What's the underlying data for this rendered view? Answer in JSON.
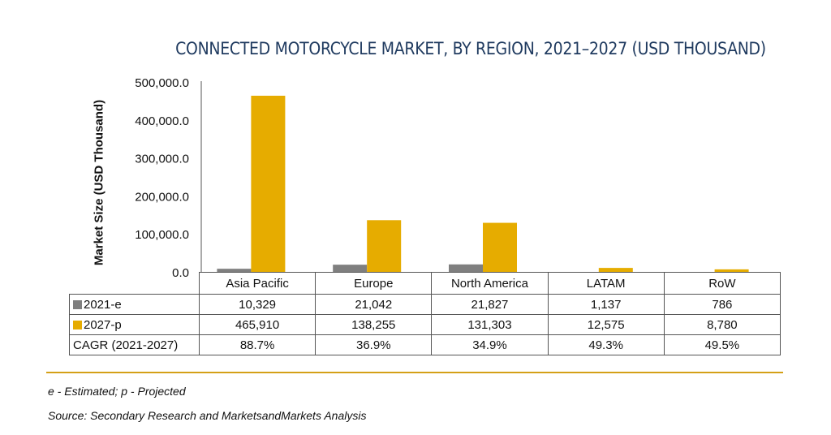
{
  "chart_data": {
    "type": "bar",
    "title": "CONNECTED MOTORCYCLE MARKET, BY REGION, 2021–2027 (USD THOUSAND)",
    "ylabel": "Market Size (USD Thousand)",
    "ylim": [
      0,
      500000
    ],
    "yticks": [
      "0.0",
      "100,000.0",
      "200,000.0",
      "300,000.0",
      "400,000.0",
      "500,000.0"
    ],
    "categories": [
      "Asia Pacific",
      "Europe",
      "North America",
      "LATAM",
      "RoW"
    ],
    "series": [
      {
        "name": "2021-e",
        "color": "#7f7f7f",
        "values": [
          10329,
          21042,
          21827,
          1137,
          786
        ],
        "labels": [
          "10,329",
          "21,042",
          "21,827",
          "1,137",
          "786"
        ]
      },
      {
        "name": "2027-p",
        "color": "#e6ac00",
        "values": [
          465910,
          138255,
          131303,
          12575,
          8780
        ],
        "labels": [
          "465,910",
          "138,255",
          "131,303",
          "12,575",
          "8,780"
        ]
      }
    ],
    "cagr_label": "CAGR (2021-2027)",
    "cagr": [
      "88.7%",
      "36.9%",
      "34.9%",
      "49.3%",
      "49.5%"
    ],
    "legend": "table-left",
    "grid": false
  },
  "footnotes": {
    "abbrev": "e - Estimated; p - Projected",
    "source": "Source: Secondary Research and MarketsandMarkets Analysis"
  },
  "colors": {
    "title": "#1f3a5f",
    "rule": "#d4a017"
  }
}
